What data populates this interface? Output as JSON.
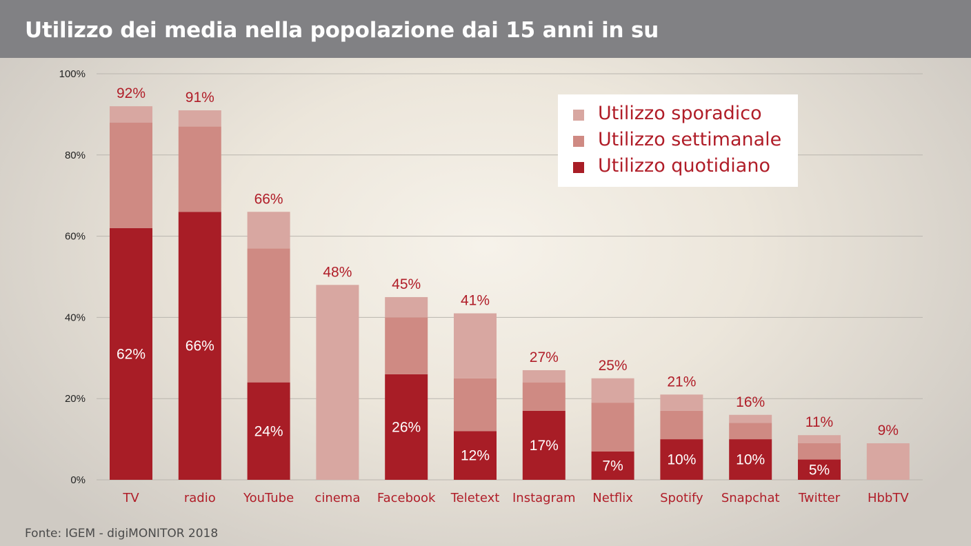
{
  "header": {
    "title": "Utilizzo dei media nella popolazione dai 15 anni in su"
  },
  "source": "Fonte: IGEM - digiMONITOR 2018",
  "legend": [
    {
      "label": "Utilizzo sporadico",
      "color": "#d8a7a1"
    },
    {
      "label": "Utilizzo settimanale",
      "color": "#cf8a83"
    },
    {
      "label": "Utilizzo quotidiano",
      "color": "#a81d26"
    }
  ],
  "chart_data": {
    "type": "bar",
    "stacked": true,
    "categories": [
      "TV",
      "radio",
      "YouTube",
      "cinema",
      "Facebook",
      "Teletext",
      "Instagram",
      "Netflix",
      "Spotify",
      "Snapchat",
      "Twitter",
      "HbbTV"
    ],
    "series": [
      {
        "name": "Utilizzo quotidiano",
        "color": "#a81d26",
        "values": [
          62,
          66,
          24,
          0,
          26,
          12,
          17,
          7,
          10,
          10,
          5,
          0
        ]
      },
      {
        "name": "Utilizzo settimanale",
        "color": "#cf8a83",
        "values": [
          26,
          21,
          33,
          0,
          14,
          13,
          7,
          12,
          7,
          4,
          4,
          0
        ]
      },
      {
        "name": "Utilizzo sporadico",
        "color": "#d8a7a1",
        "values": [
          4,
          4,
          9,
          48,
          5,
          16,
          3,
          6,
          4,
          2,
          2,
          9
        ]
      }
    ],
    "totals": [
      "92%",
      "91%",
      "66%",
      "48%",
      "45%",
      "41%",
      "27%",
      "25%",
      "21%",
      "16%",
      "11%",
      "9%"
    ],
    "daily_labels": [
      "62%",
      "66%",
      "24%",
      "",
      "26%",
      "12%",
      "17%",
      "7%",
      "10%",
      "10%",
      "5%",
      ""
    ],
    "ylim": [
      0,
      100
    ],
    "yticks": [
      "0%",
      "20%",
      "40%",
      "60%",
      "80%",
      "100%"
    ],
    "ytick_values": [
      0,
      20,
      40,
      60,
      80,
      100
    ],
    "grid": true,
    "legend_position": "top-right"
  }
}
